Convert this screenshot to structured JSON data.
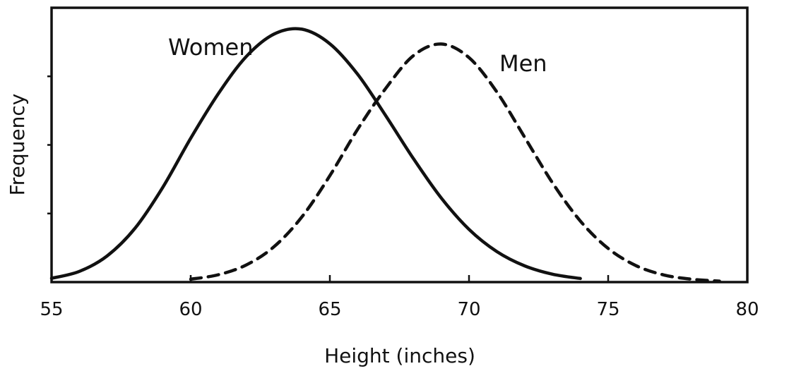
{
  "chart_data": {
    "type": "line",
    "title": "",
    "xlabel": "Height (inches)",
    "ylabel": "Frequency",
    "xlim": [
      55,
      80
    ],
    "ylim": [
      0,
      1.15
    ],
    "x_ticks": [
      55,
      60,
      65,
      70,
      75,
      80
    ],
    "y_ticks_labeled": false,
    "grid": false,
    "legend": "inline",
    "series": [
      {
        "name": "Women",
        "style": "solid",
        "color": "#111111",
        "x": [
          55,
          56,
          57,
          58,
          59,
          60,
          61,
          62,
          63,
          64,
          65,
          66,
          67,
          68,
          69,
          70,
          71,
          72,
          73,
          74
        ],
        "y": [
          0.016,
          0.045,
          0.11,
          0.226,
          0.398,
          0.603,
          0.791,
          0.946,
          1.04,
          1.06,
          0.999,
          0.871,
          0.699,
          0.518,
          0.353,
          0.221,
          0.128,
          0.068,
          0.033,
          0.015
        ]
      },
      {
        "name": "Men",
        "style": "dashed",
        "color": "#111111",
        "x": [
          60,
          61,
          62,
          63,
          64,
          65,
          66,
          67,
          68,
          69,
          70,
          71,
          72,
          73,
          74,
          75,
          76,
          77,
          78,
          79
        ],
        "y": [
          0.012,
          0.031,
          0.072,
          0.149,
          0.274,
          0.446,
          0.641,
          0.811,
          0.949,
          0.998,
          0.941,
          0.797,
          0.607,
          0.416,
          0.256,
          0.141,
          0.069,
          0.03,
          0.012,
          0.004
        ]
      }
    ]
  }
}
